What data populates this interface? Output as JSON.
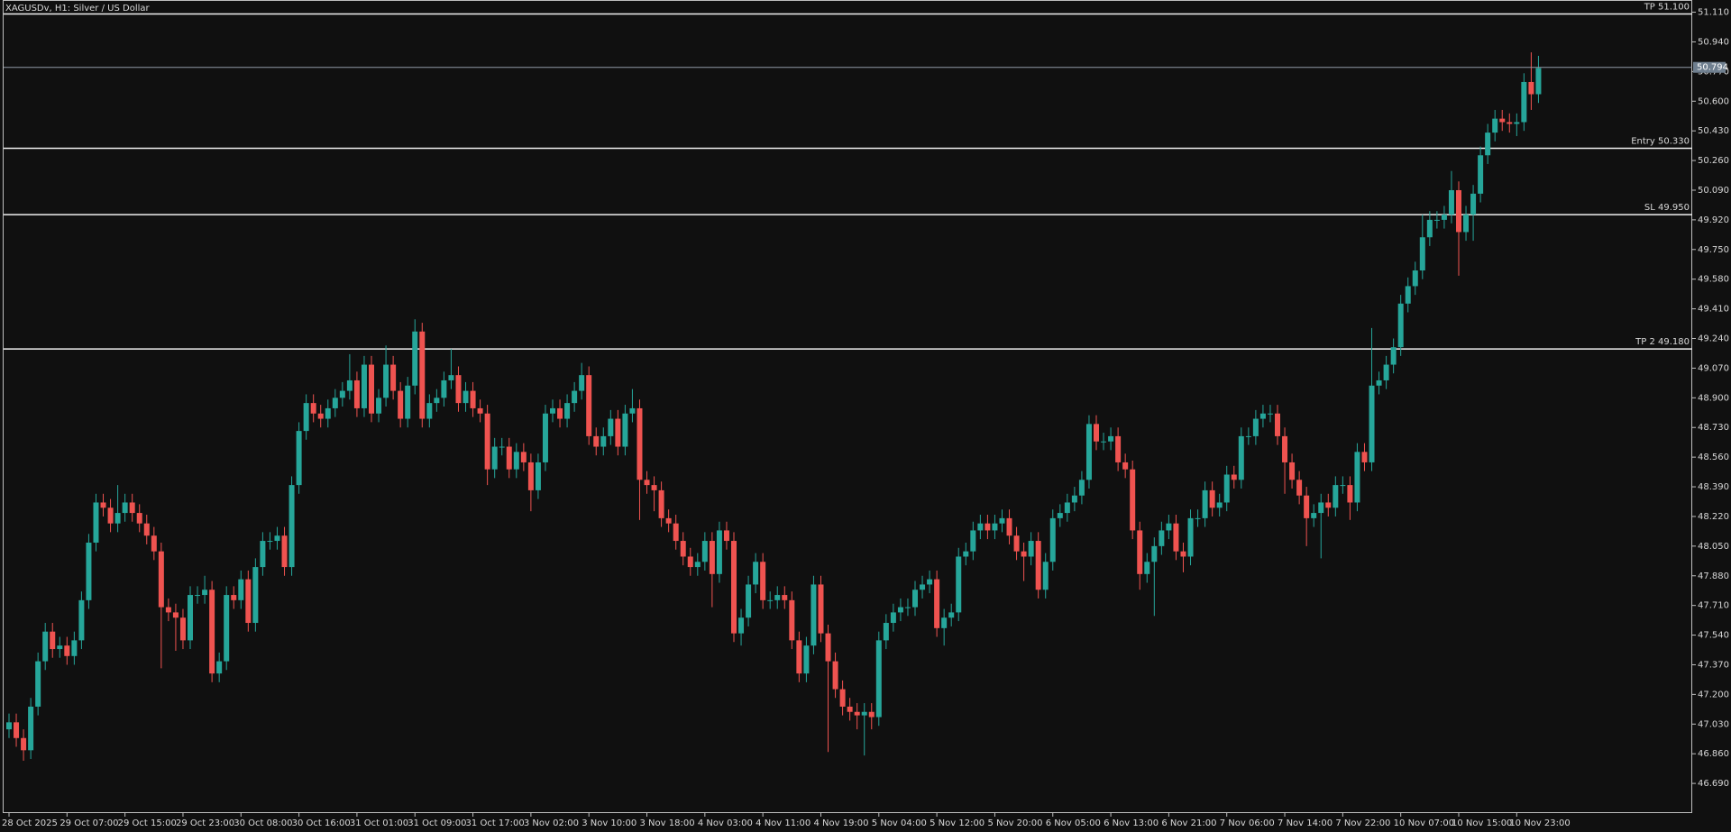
{
  "chart_data": {
    "type": "candlestick",
    "title": "XAGUSDv, H1:  Silver / US Dollar",
    "up_color": "#26a69a",
    "down_color": "#ef5350",
    "categories": [
      "28 Oct 2025",
      null,
      null,
      null,
      null,
      null,
      null,
      null,
      "29 Oct 07:00",
      null,
      null,
      null,
      null,
      null,
      null,
      null,
      "29 Oct 15:00",
      null,
      null,
      null,
      null,
      null,
      null,
      null,
      "29 Oct 23:00",
      null,
      null,
      null,
      null,
      null,
      null,
      null,
      "30 Oct 08:00",
      null,
      null,
      null,
      null,
      null,
      null,
      null,
      "30 Oct 16:00",
      null,
      null,
      null,
      null,
      null,
      null,
      null,
      "31 Oct 01:00",
      null,
      null,
      null,
      null,
      null,
      null,
      null,
      "31 Oct 09:00",
      null,
      null,
      null,
      null,
      null,
      null,
      null,
      "31 Oct 17:00",
      null,
      null,
      null,
      null,
      null,
      null,
      null,
      "3 Nov 02:00",
      null,
      null,
      null,
      null,
      null,
      null,
      null,
      "3 Nov 10:00",
      null,
      null,
      null,
      null,
      null,
      null,
      null,
      "3 Nov 18:00",
      null,
      null,
      null,
      null,
      null,
      null,
      null,
      "4 Nov 03:00",
      null,
      null,
      null,
      null,
      null,
      null,
      null,
      "4 Nov 11:00",
      null,
      null,
      null,
      null,
      null,
      null,
      null,
      "4 Nov 19:00",
      null,
      null,
      null,
      null,
      null,
      null,
      null,
      "5 Nov 04:00",
      null,
      null,
      null,
      null,
      null,
      null,
      null,
      "5 Nov 12:00",
      null,
      null,
      null,
      null,
      null,
      null,
      null,
      "5 Nov 20:00",
      null,
      null,
      null,
      null,
      null,
      null,
      null,
      "6 Nov 05:00",
      null,
      null,
      null,
      null,
      null,
      null,
      null,
      "6 Nov 13:00",
      null,
      null,
      null,
      null,
      null,
      null,
      null,
      "6 Nov 21:00",
      null,
      null,
      null,
      null,
      null,
      null,
      null,
      "7 Nov 06:00",
      null,
      null,
      null,
      null,
      null,
      null,
      null,
      "7 Nov 14:00",
      null,
      null,
      null,
      null,
      null,
      null,
      null,
      "7 Nov 22:00",
      null,
      null,
      null,
      null,
      null,
      null,
      null,
      "10 Nov 07:00",
      null,
      null,
      null,
      null,
      null,
      null,
      null,
      "10 Nov 15:00",
      null,
      null,
      null,
      null,
      null,
      null,
      null,
      "10 Nov 23:00",
      null,
      null,
      null
    ],
    "open": [
      47.0,
      47.04,
      46.95,
      46.88,
      47.13,
      47.39,
      47.56,
      47.46,
      47.48,
      47.42,
      47.51,
      47.74,
      48.07,
      48.3,
      48.27,
      48.18,
      48.24,
      48.3,
      48.24,
      48.18,
      48.11,
      48.02,
      47.7,
      47.67,
      47.64,
      47.51,
      47.77,
      47.77,
      47.8,
      47.32,
      47.39,
      47.77,
      47.74,
      47.86,
      47.61,
      47.93,
      48.08,
      48.08,
      48.11,
      47.93,
      48.4,
      48.71,
      48.87,
      48.81,
      48.78,
      48.84,
      48.9,
      48.94,
      49.0,
      48.84,
      49.09,
      48.81,
      48.9,
      49.09,
      48.94,
      48.78,
      48.97,
      49.28,
      48.78,
      48.87,
      48.9,
      49.0,
      49.03,
      48.87,
      48.94,
      48.84,
      48.81,
      48.49,
      48.62,
      48.62,
      48.49,
      48.59,
      48.53,
      48.37,
      48.53,
      48.81,
      48.84,
      48.78,
      48.87,
      48.94,
      49.03,
      48.68,
      48.62,
      48.68,
      48.78,
      48.62,
      48.81,
      48.84,
      48.43,
      48.4,
      48.37,
      48.21,
      48.18,
      48.08,
      47.99,
      47.93,
      47.96,
      48.08,
      47.89,
      48.14,
      48.08,
      47.55,
      47.64,
      47.83,
      47.96,
      47.74,
      47.74,
      47.77,
      47.74,
      47.51,
      47.32,
      47.48,
      47.83,
      47.55,
      47.39,
      47.23,
      47.13,
      47.1,
      47.08,
      47.1,
      47.07,
      47.51,
      47.61,
      47.67,
      47.7,
      47.7,
      47.8,
      47.83,
      47.86,
      47.58,
      47.64,
      47.67,
      47.99,
      48.02,
      48.14,
      48.18,
      48.14,
      48.18,
      48.21,
      48.11,
      48.02,
      47.99,
      48.08,
      47.8,
      47.96,
      48.21,
      48.24,
      48.3,
      48.34,
      48.43,
      48.75,
      48.65,
      48.65,
      48.68,
      48.53,
      48.49,
      48.14,
      47.89,
      47.96,
      48.05,
      48.14,
      48.18,
      48.02,
      47.99,
      48.21,
      48.21,
      48.37,
      48.27,
      48.3,
      48.46,
      48.43,
      48.68,
      48.68,
      48.78,
      48.81,
      48.81,
      48.68,
      48.53,
      48.43,
      48.34,
      48.21,
      48.24,
      48.3,
      48.27,
      48.4,
      48.4,
      48.3,
      48.59,
      48.53,
      48.97,
      49.0,
      49.09,
      49.19,
      49.44,
      49.54,
      49.63,
      49.82,
      49.92,
      49.92,
      49.95,
      50.09,
      49.85,
      49.95,
      50.07,
      50.29,
      50.42,
      50.5,
      50.48,
      50.47,
      50.48,
      50.71,
      50.64
    ],
    "high": [
      47.09,
      47.09,
      47.0,
      47.18,
      47.44,
      47.61,
      47.61,
      47.53,
      47.53,
      47.56,
      47.79,
      48.12,
      48.35,
      48.35,
      48.32,
      48.4,
      48.35,
      48.35,
      48.29,
      48.23,
      48.16,
      48.07,
      47.75,
      47.72,
      47.69,
      47.82,
      47.82,
      47.88,
      47.85,
      47.44,
      47.82,
      47.82,
      47.91,
      47.91,
      47.98,
      48.13,
      48.13,
      48.16,
      48.16,
      48.45,
      48.76,
      48.92,
      48.92,
      48.86,
      48.89,
      48.95,
      48.99,
      49.15,
      49.05,
      49.14,
      49.14,
      48.95,
      49.2,
      49.14,
      48.99,
      49.02,
      49.35,
      49.33,
      48.92,
      48.95,
      49.05,
      49.18,
      49.08,
      48.99,
      48.99,
      48.89,
      48.86,
      48.67,
      48.67,
      48.67,
      48.64,
      48.64,
      48.58,
      48.58,
      48.86,
      48.89,
      48.89,
      48.92,
      48.99,
      49.1,
      49.08,
      48.73,
      48.73,
      48.83,
      48.83,
      48.86,
      48.95,
      48.89,
      48.48,
      48.45,
      48.42,
      48.26,
      48.23,
      48.13,
      48.04,
      48.01,
      48.13,
      48.13,
      48.19,
      48.19,
      48.13,
      47.69,
      47.88,
      48.01,
      48.01,
      47.79,
      47.82,
      47.82,
      47.79,
      47.56,
      47.53,
      47.88,
      47.88,
      47.6,
      47.44,
      47.28,
      47.18,
      47.15,
      47.15,
      47.15,
      47.56,
      47.66,
      47.72,
      47.75,
      47.75,
      47.85,
      47.88,
      47.91,
      47.91,
      47.69,
      47.72,
      48.04,
      48.07,
      48.19,
      48.23,
      48.23,
      48.23,
      48.26,
      48.26,
      48.16,
      48.07,
      48.13,
      48.13,
      48.01,
      48.26,
      48.29,
      48.35,
      48.39,
      48.48,
      48.8,
      48.8,
      48.7,
      48.73,
      48.73,
      48.58,
      48.54,
      48.19,
      48.01,
      48.1,
      48.19,
      48.23,
      48.23,
      48.07,
      48.26,
      48.26,
      48.42,
      48.42,
      48.35,
      48.51,
      48.51,
      48.73,
      48.73,
      48.83,
      48.86,
      48.86,
      48.86,
      48.73,
      48.58,
      48.48,
      48.39,
      48.29,
      48.35,
      48.35,
      48.45,
      48.45,
      48.45,
      48.64,
      48.64,
      49.3,
      49.05,
      49.14,
      49.24,
      49.49,
      49.59,
      49.68,
      49.95,
      49.97,
      49.97,
      50.0,
      50.2,
      50.14,
      50.0,
      50.12,
      50.34,
      50.47,
      50.55,
      50.55,
      50.53,
      50.53,
      50.76,
      50.88,
      50.86
    ],
    "low": [
      46.95,
      46.9,
      46.82,
      46.83,
      47.08,
      47.34,
      47.41,
      47.41,
      47.37,
      47.37,
      47.46,
      47.69,
      48.02,
      48.22,
      48.13,
      48.13,
      48.19,
      48.19,
      48.13,
      48.06,
      47.97,
      47.35,
      47.62,
      47.45,
      47.46,
      47.46,
      47.72,
      47.72,
      47.27,
      47.27,
      47.34,
      47.69,
      47.69,
      47.56,
      47.56,
      47.88,
      48.03,
      48.03,
      47.88,
      47.88,
      48.35,
      48.66,
      48.76,
      48.73,
      48.73,
      48.79,
      48.85,
      48.89,
      48.79,
      48.79,
      48.76,
      48.76,
      48.85,
      48.89,
      48.73,
      48.73,
      48.92,
      48.73,
      48.73,
      48.82,
      48.85,
      48.95,
      48.82,
      48.82,
      48.79,
      48.76,
      48.4,
      48.44,
      48.57,
      48.44,
      48.44,
      48.48,
      48.25,
      48.32,
      48.48,
      48.76,
      48.73,
      48.73,
      48.82,
      48.89,
      48.63,
      48.57,
      48.57,
      48.63,
      48.57,
      48.57,
      48.76,
      48.2,
      48.35,
      48.25,
      48.16,
      48.13,
      48.03,
      47.94,
      47.88,
      47.88,
      47.91,
      47.7,
      47.84,
      48.03,
      47.5,
      47.48,
      47.59,
      47.78,
      47.69,
      47.69,
      47.69,
      47.69,
      47.46,
      47.27,
      47.27,
      47.43,
      47.5,
      46.87,
      47.18,
      47.08,
      47.05,
      47.0,
      46.85,
      47.0,
      47.02,
      47.46,
      47.56,
      47.62,
      47.65,
      47.65,
      47.75,
      47.78,
      47.53,
      47.48,
      47.59,
      47.62,
      47.94,
      47.97,
      48.09,
      48.09,
      48.09,
      48.13,
      48.06,
      47.97,
      47.85,
      47.94,
      47.75,
      47.75,
      47.91,
      48.16,
      48.19,
      48.25,
      48.29,
      48.38,
      48.6,
      48.6,
      48.6,
      48.48,
      48.44,
      48.09,
      47.8,
      47.84,
      47.65,
      48.0,
      48.09,
      47.97,
      47.9,
      47.94,
      48.16,
      48.16,
      48.22,
      48.22,
      48.25,
      48.38,
      48.38,
      48.63,
      48.63,
      48.73,
      48.76,
      48.63,
      48.35,
      48.38,
      48.29,
      48.05,
      48.16,
      47.98,
      48.22,
      48.22,
      48.35,
      48.2,
      48.25,
      48.48,
      48.48,
      48.92,
      48.95,
      49.04,
      49.14,
      49.39,
      49.49,
      49.58,
      49.77,
      49.87,
      49.87,
      49.9,
      49.6,
      49.8,
      49.8,
      50.02,
      50.24,
      50.37,
      50.43,
      50.42,
      50.4,
      50.43,
      50.55,
      50.59
    ],
    "close": [
      47.04,
      46.95,
      46.88,
      47.13,
      47.39,
      47.56,
      47.46,
      47.48,
      47.42,
      47.51,
      47.74,
      48.07,
      48.3,
      48.27,
      48.18,
      48.24,
      48.3,
      48.24,
      48.18,
      48.11,
      48.02,
      47.7,
      47.67,
      47.64,
      47.51,
      47.77,
      47.77,
      47.8,
      47.32,
      47.39,
      47.77,
      47.74,
      47.86,
      47.61,
      47.93,
      48.08,
      48.08,
      48.11,
      47.93,
      48.4,
      48.71,
      48.87,
      48.81,
      48.78,
      48.84,
      48.9,
      48.94,
      49.0,
      48.84,
      49.09,
      48.81,
      48.9,
      49.09,
      48.94,
      48.78,
      48.97,
      49.28,
      48.78,
      48.87,
      48.9,
      49.0,
      49.03,
      48.87,
      48.94,
      48.84,
      48.81,
      48.49,
      48.62,
      48.62,
      48.49,
      48.59,
      48.53,
      48.37,
      48.53,
      48.81,
      48.84,
      48.78,
      48.87,
      48.94,
      49.03,
      48.68,
      48.62,
      48.68,
      48.78,
      48.62,
      48.81,
      48.84,
      48.43,
      48.4,
      48.37,
      48.21,
      48.18,
      48.08,
      47.99,
      47.93,
      47.96,
      48.08,
      47.89,
      48.14,
      48.08,
      47.55,
      47.64,
      47.83,
      47.96,
      47.74,
      47.74,
      47.77,
      47.74,
      47.51,
      47.32,
      47.48,
      47.83,
      47.55,
      47.39,
      47.23,
      47.13,
      47.1,
      47.08,
      47.1,
      47.07,
      47.51,
      47.61,
      47.67,
      47.7,
      47.7,
      47.8,
      47.83,
      47.86,
      47.58,
      47.64,
      47.67,
      47.99,
      48.02,
      48.14,
      48.18,
      48.14,
      48.18,
      48.21,
      48.11,
      48.02,
      47.99,
      48.08,
      47.8,
      47.96,
      48.21,
      48.24,
      48.3,
      48.34,
      48.43,
      48.75,
      48.65,
      48.65,
      48.68,
      48.53,
      48.49,
      48.14,
      47.89,
      47.96,
      48.05,
      48.14,
      48.18,
      48.02,
      47.99,
      48.21,
      48.21,
      48.37,
      48.27,
      48.3,
      48.46,
      48.43,
      48.68,
      48.68,
      48.78,
      48.81,
      48.81,
      48.68,
      48.53,
      48.43,
      48.34,
      48.21,
      48.24,
      48.3,
      48.27,
      48.4,
      48.4,
      48.3,
      48.59,
      48.53,
      48.97,
      49.0,
      49.09,
      49.19,
      49.44,
      49.54,
      49.63,
      49.82,
      49.92,
      49.92,
      49.95,
      50.09,
      49.85,
      49.95,
      50.07,
      50.29,
      50.42,
      50.5,
      50.48,
      50.47,
      50.48,
      50.71,
      50.64,
      50.79
    ],
    "ylim": [
      46.52,
      51.18
    ],
    "yticks": [
      {
        "value": 51.11,
        "label": "51.110"
      },
      {
        "value": 50.94,
        "label": "50.940"
      },
      {
        "value": 50.77,
        "label": "50.770"
      },
      {
        "value": 50.6,
        "label": "50.600"
      },
      {
        "value": 50.43,
        "label": "50.430"
      },
      {
        "value": 50.26,
        "label": "50.260"
      },
      {
        "value": 50.09,
        "label": "50.090"
      },
      {
        "value": 49.92,
        "label": "49.920"
      },
      {
        "value": 49.75,
        "label": "49.750"
      },
      {
        "value": 49.58,
        "label": "49.580"
      },
      {
        "value": 49.41,
        "label": "49.410"
      },
      {
        "value": 49.24,
        "label": "49.240"
      },
      {
        "value": 49.07,
        "label": "49.070"
      },
      {
        "value": 48.9,
        "label": "48.900"
      },
      {
        "value": 48.73,
        "label": "48.730"
      },
      {
        "value": 48.56,
        "label": "48.560"
      },
      {
        "value": 48.39,
        "label": "48.390"
      },
      {
        "value": 48.22,
        "label": "48.220"
      },
      {
        "value": 48.05,
        "label": "48.050"
      },
      {
        "value": 47.88,
        "label": "47.880"
      },
      {
        "value": 47.71,
        "label": "47.710"
      },
      {
        "value": 47.54,
        "label": "47.540"
      },
      {
        "value": 47.37,
        "label": "47.370"
      },
      {
        "value": 47.2,
        "label": "47.200"
      },
      {
        "value": 47.03,
        "label": "47.030"
      },
      {
        "value": 46.86,
        "label": "46.860"
      },
      {
        "value": 46.69,
        "label": "46.690"
      }
    ],
    "levels": [
      {
        "label": "TP 51.100",
        "value": 51.1
      },
      {
        "label": "Entry 50.330",
        "value": 50.33
      },
      {
        "label": "SL 49.950",
        "value": 49.95
      },
      {
        "label": "TP 2 49.180",
        "value": 49.18
      }
    ],
    "current_price": 50.794,
    "grid": false
  }
}
